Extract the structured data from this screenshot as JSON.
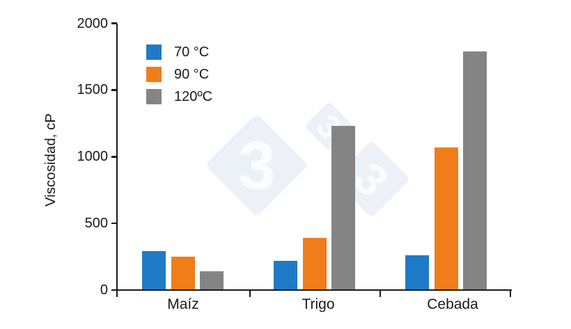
{
  "watermark": {
    "glyphs": [
      "3",
      "3",
      "3"
    ]
  },
  "chart_data": {
    "type": "bar",
    "title": "",
    "xlabel": "",
    "ylabel": "Viscosidad, cP",
    "ylim": [
      0,
      2000
    ],
    "yticks": [
      0,
      500,
      1000,
      1500,
      2000
    ],
    "grid": false,
    "legend_position": "top-left-inside",
    "categories": [
      "Maíz",
      "Trigo",
      "Cebada"
    ],
    "series": [
      {
        "name": "70 °C",
        "color": "#1F7AC7",
        "values": [
          290,
          220,
          260
        ]
      },
      {
        "name": "90 °C",
        "color": "#F07D1A",
        "values": [
          250,
          390,
          1070
        ]
      },
      {
        "name": "120ºC",
        "color": "#848484",
        "values": [
          140,
          1230,
          1790
        ]
      }
    ]
  }
}
